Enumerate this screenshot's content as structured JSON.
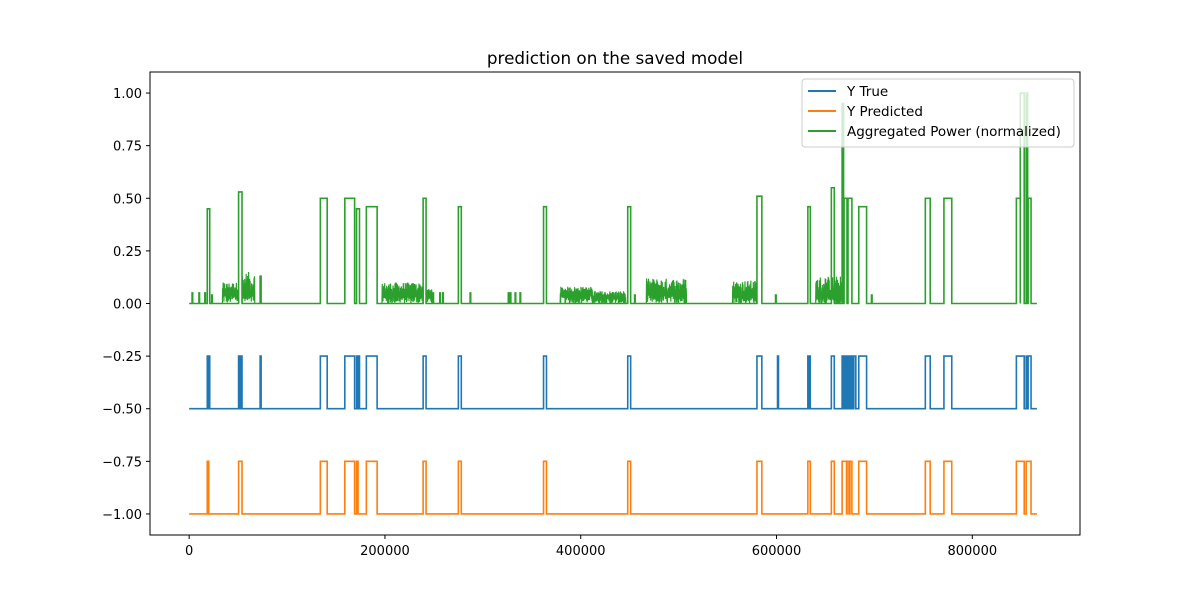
{
  "chart_data": {
    "type": "line",
    "title": "prediction on the saved model",
    "xlabel": "",
    "ylabel": "",
    "xlim": [
      -40000,
      910000
    ],
    "ylim": [
      -1.1,
      1.1
    ],
    "xticks": [
      0,
      200000,
      400000,
      600000,
      800000
    ],
    "xtick_labels": [
      "0",
      "200000",
      "400000",
      "600000",
      "800000"
    ],
    "yticks": [
      1.0,
      0.75,
      0.5,
      0.25,
      0.0,
      -0.25,
      -0.5,
      -0.75,
      -1.0
    ],
    "ytick_labels": [
      "1.00",
      "0.75",
      "0.50",
      "0.25",
      "0.00",
      "−0.25",
      "−0.50",
      "−0.75",
      "−1.00"
    ],
    "grid": false,
    "legend_position": "top-right",
    "x_max": 866000,
    "series": [
      {
        "name": "Y True",
        "color": "#1f77b4",
        "base": -0.5,
        "high": -0.25,
        "on_intervals": [
          [
            18500,
            19500
          ],
          [
            19800,
            21000
          ],
          [
            50500,
            51500
          ],
          [
            52500,
            54000
          ],
          [
            72500,
            73500
          ],
          [
            134000,
            141000
          ],
          [
            159000,
            169000
          ],
          [
            171000,
            172500
          ],
          [
            173000,
            174000
          ],
          [
            181000,
            192000
          ],
          [
            239000,
            242000
          ],
          [
            275000,
            278000
          ],
          [
            362000,
            365000
          ],
          [
            448000,
            451000
          ],
          [
            580000,
            585000
          ],
          [
            601000,
            602000
          ],
          [
            632000,
            633000
          ],
          [
            633500,
            634500
          ],
          [
            656000,
            659000
          ],
          [
            667000,
            668000
          ],
          [
            668500,
            669500
          ],
          [
            670000,
            671000
          ],
          [
            671500,
            672500
          ],
          [
            673000,
            674000
          ],
          [
            675000,
            676000
          ],
          [
            677000,
            678000
          ],
          [
            679000,
            681000
          ],
          [
            684000,
            692000
          ],
          [
            752000,
            757000
          ],
          [
            771000,
            779000
          ],
          [
            845000,
            853000
          ],
          [
            855000,
            856000
          ],
          [
            857000,
            860000
          ]
        ]
      },
      {
        "name": "Y Predicted",
        "color": "#ff7f0e",
        "base": -1.0,
        "high": -0.75,
        "on_intervals": [
          [
            18500,
            20000
          ],
          [
            50500,
            54000
          ],
          [
            134000,
            141000
          ],
          [
            159000,
            169000
          ],
          [
            171000,
            172500
          ],
          [
            181000,
            192000
          ],
          [
            239000,
            242000
          ],
          [
            275000,
            278000
          ],
          [
            362000,
            365000
          ],
          [
            448000,
            451000
          ],
          [
            580000,
            585000
          ],
          [
            632000,
            634500
          ],
          [
            656000,
            659000
          ],
          [
            667000,
            671500
          ],
          [
            672000,
            674000
          ],
          [
            675000,
            677000
          ],
          [
            684000,
            692000
          ],
          [
            752000,
            757000
          ],
          [
            771000,
            779000
          ],
          [
            845000,
            853000
          ],
          [
            855000,
            860000
          ]
        ]
      },
      {
        "name": "Aggregated Power (normalized)",
        "color": "#2ca02c",
        "base": 0.0,
        "blocks": [
          [
            18500,
            21000,
            0.45
          ],
          [
            50500,
            54000,
            0.53
          ],
          [
            72500,
            73500,
            0.13
          ],
          [
            134000,
            141000,
            0.5
          ],
          [
            159000,
            169000,
            0.5
          ],
          [
            171000,
            174000,
            0.45
          ],
          [
            181000,
            192000,
            0.46
          ],
          [
            239000,
            242000,
            0.5
          ],
          [
            275000,
            278000,
            0.46
          ],
          [
            362000,
            365000,
            0.46
          ],
          [
            448000,
            451000,
            0.46
          ],
          [
            580000,
            585000,
            0.51
          ],
          [
            632000,
            634500,
            0.46
          ],
          [
            656000,
            659000,
            0.55
          ],
          [
            667000,
            668500,
            0.95
          ],
          [
            669000,
            672000,
            0.5
          ],
          [
            673000,
            677000,
            0.5
          ],
          [
            684000,
            692000,
            0.46
          ],
          [
            752000,
            757000,
            0.5
          ],
          [
            771000,
            779000,
            0.5
          ],
          [
            845000,
            849000,
            0.5
          ],
          [
            849000,
            853000,
            1.0
          ],
          [
            855000,
            856500,
            1.0
          ],
          [
            857000,
            860000,
            0.5
          ]
        ],
        "spikes": [
          [
            3000,
            0.05
          ],
          [
            10000,
            0.05
          ],
          [
            16000,
            0.05
          ],
          [
            23000,
            0.04
          ],
          [
            326000,
            0.05
          ],
          [
            328000,
            0.05
          ],
          [
            333000,
            0.05
          ],
          [
            338000,
            0.05
          ],
          [
            430000,
            0.04
          ],
          [
            444000,
            0.04
          ],
          [
            455000,
            0.04
          ],
          [
            203000,
            0.04
          ],
          [
            249000,
            0.05
          ],
          [
            256000,
            0.05
          ],
          [
            259000,
            0.05
          ],
          [
            287000,
            0.05
          ],
          [
            599000,
            0.04
          ],
          [
            650000,
            0.05
          ],
          [
            662000,
            0.06
          ],
          [
            664000,
            0.07
          ],
          [
            697000,
            0.04
          ]
        ],
        "noise_regions": [
          [
            34000,
            50500,
            0.06,
            0.1
          ],
          [
            54000,
            67000,
            0.05,
            0.15
          ],
          [
            197000,
            239000,
            0.05,
            0.1
          ],
          [
            242000,
            248000,
            0.05,
            0.07
          ],
          [
            379000,
            412000,
            0.05,
            0.08
          ],
          [
            412000,
            446000,
            0.03,
            0.06
          ],
          [
            467000,
            508000,
            0.05,
            0.12
          ],
          [
            555000,
            580000,
            0.05,
            0.11
          ],
          [
            640000,
            667000,
            0.04,
            0.13
          ]
        ]
      }
    ]
  }
}
